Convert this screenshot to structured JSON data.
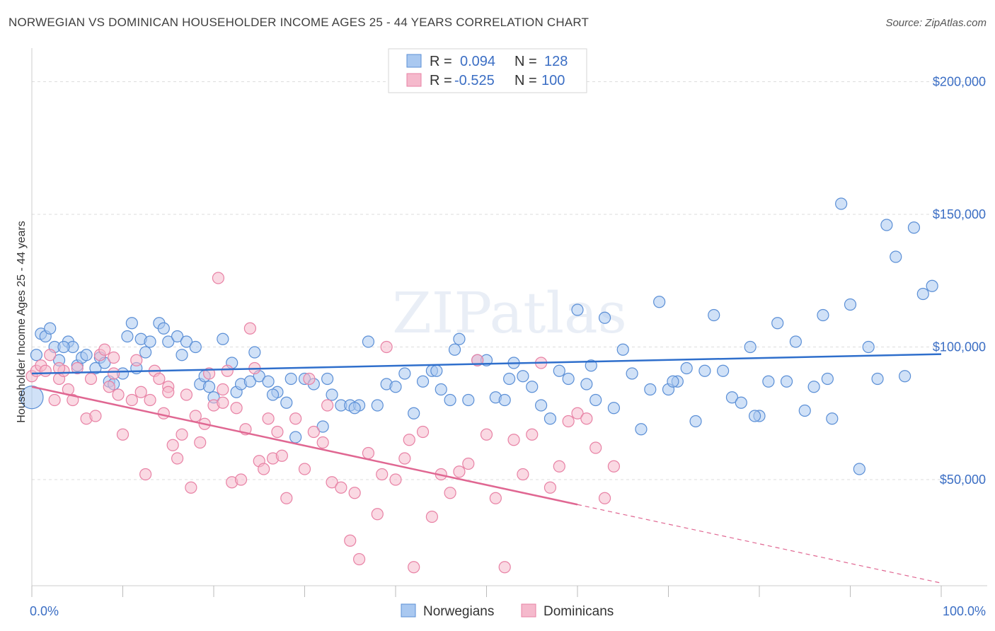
{
  "title": "NORWEGIAN VS DOMINICAN HOUSEHOLDER INCOME AGES 25 - 44 YEARS CORRELATION CHART",
  "source": "Source: ZipAtlas.com",
  "watermark": "ZIPatlas",
  "colors": {
    "blue_fill": "#a9c8f0",
    "blue_stroke": "#5b8fd6",
    "blue_line": "#2f6fcc",
    "pink_fill": "#f5b9cc",
    "pink_stroke": "#e882a5",
    "pink_line": "#e06792",
    "grid": "#dddddd",
    "tick_text": "#3b6ec4"
  },
  "legend": {
    "r_label": "R =",
    "n_label": "N =",
    "rows": [
      {
        "r": "0.094",
        "n": "128",
        "color": "blue"
      },
      {
        "r": "-0.525",
        "n": "100",
        "color": "pink"
      }
    ]
  },
  "chart_data": {
    "type": "scatter",
    "xlabel": "",
    "ylabel": "Householder Income Ages 25 - 44 years",
    "xlim": [
      0,
      100
    ],
    "ylim": [
      10000,
      210000
    ],
    "x_tick_labels": [
      "0.0%",
      "100.0%"
    ],
    "y_ticks": [
      {
        "value": 50000,
        "label": "$50,000"
      },
      {
        "value": 100000,
        "label": "$100,000"
      },
      {
        "value": 150000,
        "label": "$150,000"
      },
      {
        "value": 200000,
        "label": "$200,000"
      }
    ],
    "series": [
      {
        "name": "Norwegians",
        "color": "blue",
        "trend": {
          "x": [
            0,
            100
          ],
          "y": [
            90000,
            97300
          ],
          "dashed_from": null
        },
        "points": [
          [
            0,
            81000
          ],
          [
            0.5,
            97000
          ],
          [
            1,
            105000
          ],
          [
            1.5,
            104000
          ],
          [
            2,
            107000
          ],
          [
            2.5,
            100000
          ],
          [
            3,
            95000
          ],
          [
            4,
            102000
          ],
          [
            4.5,
            100000
          ],
          [
            5,
            93000
          ],
          [
            5.5,
            96000
          ],
          [
            6,
            97000
          ],
          [
            7,
            92000
          ],
          [
            7.5,
            96000
          ],
          [
            8,
            94000
          ],
          [
            8.5,
            87000
          ],
          [
            9,
            86000
          ],
          [
            10,
            90000
          ],
          [
            10.5,
            104000
          ],
          [
            11,
            109000
          ],
          [
            12,
            103000
          ],
          [
            12.5,
            98000
          ],
          [
            13,
            102000
          ],
          [
            14,
            109000
          ],
          [
            14.5,
            107000
          ],
          [
            15,
            102000
          ],
          [
            16,
            104000
          ],
          [
            16.5,
            97000
          ],
          [
            17,
            102000
          ],
          [
            18,
            100000
          ],
          [
            18.5,
            86000
          ],
          [
            19,
            89000
          ],
          [
            20,
            81000
          ],
          [
            21,
            103000
          ],
          [
            22,
            94000
          ],
          [
            22.5,
            83000
          ],
          [
            23,
            86000
          ],
          [
            24,
            87000
          ],
          [
            24.5,
            98000
          ],
          [
            25,
            89000
          ],
          [
            26,
            87000
          ],
          [
            27,
            83000
          ],
          [
            28,
            79000
          ],
          [
            28.5,
            88000
          ],
          [
            29,
            66000
          ],
          [
            30,
            88000
          ],
          [
            31,
            86000
          ],
          [
            32,
            70000
          ],
          [
            32.5,
            88000
          ],
          [
            33,
            82000
          ],
          [
            34,
            78000
          ],
          [
            35,
            78000
          ],
          [
            36,
            78000
          ],
          [
            37,
            102000
          ],
          [
            38,
            78000
          ],
          [
            39,
            86000
          ],
          [
            40,
            85000
          ],
          [
            41,
            90000
          ],
          [
            42,
            75000
          ],
          [
            43,
            87000
          ],
          [
            44,
            91000
          ],
          [
            45,
            84000
          ],
          [
            46,
            80000
          ],
          [
            46.5,
            99000
          ],
          [
            47,
            103000
          ],
          [
            48,
            80000
          ],
          [
            49,
            95000
          ],
          [
            50,
            95000
          ],
          [
            51,
            81000
          ],
          [
            52,
            80000
          ],
          [
            53,
            94000
          ],
          [
            54,
            89000
          ],
          [
            55,
            85000
          ],
          [
            56,
            78000
          ],
          [
            57,
            73000
          ],
          [
            58,
            91000
          ],
          [
            59,
            88000
          ],
          [
            60,
            114000
          ],
          [
            61,
            86000
          ],
          [
            62,
            80000
          ],
          [
            63,
            111000
          ],
          [
            64,
            77000
          ],
          [
            65,
            99000
          ],
          [
            66,
            90000
          ],
          [
            67,
            69000
          ],
          [
            68,
            84000
          ],
          [
            69,
            117000
          ],
          [
            70,
            84000
          ],
          [
            71,
            87000
          ],
          [
            72,
            92000
          ],
          [
            73,
            72000
          ],
          [
            74,
            91000
          ],
          [
            75,
            112000
          ],
          [
            76,
            91000
          ],
          [
            77,
            81000
          ],
          [
            78,
            79000
          ],
          [
            79,
            100000
          ],
          [
            80,
            74000
          ],
          [
            81,
            87000
          ],
          [
            82,
            109000
          ],
          [
            83,
            87000
          ],
          [
            84,
            102000
          ],
          [
            85,
            76000
          ],
          [
            86,
            85000
          ],
          [
            87,
            112000
          ],
          [
            88,
            73000
          ],
          [
            89,
            154000
          ],
          [
            90,
            116000
          ],
          [
            91,
            54000
          ],
          [
            92,
            100000
          ],
          [
            93,
            88000
          ],
          [
            94,
            146000
          ],
          [
            95,
            134000
          ],
          [
            96,
            89000
          ],
          [
            97,
            145000
          ],
          [
            98,
            120000
          ],
          [
            99,
            123000
          ],
          [
            3.5,
            100000
          ],
          [
            11.5,
            92000
          ],
          [
            19.5,
            85000
          ],
          [
            26.5,
            82000
          ],
          [
            35.5,
            77000
          ],
          [
            44.5,
            91000
          ],
          [
            52.5,
            88000
          ],
          [
            61.5,
            93000
          ],
          [
            70.5,
            87000
          ],
          [
            79.5,
            74000
          ],
          [
            87.5,
            88000
          ]
        ]
      },
      {
        "name": "Dominicans",
        "color": "pink",
        "trend": {
          "x": [
            0,
            100
          ],
          "y": [
            85000,
            11000
          ],
          "dashed_from": 60
        },
        "points": [
          [
            0,
            89000
          ],
          [
            0.5,
            91000
          ],
          [
            1,
            93000
          ],
          [
            1.5,
            91000
          ],
          [
            2,
            97000
          ],
          [
            2.5,
            80000
          ],
          [
            3,
            88000
          ],
          [
            3.5,
            91000
          ],
          [
            4,
            84000
          ],
          [
            4.5,
            80000
          ],
          [
            5,
            92000
          ],
          [
            6,
            73000
          ],
          [
            6.5,
            88000
          ],
          [
            7,
            74000
          ],
          [
            7.5,
            97000
          ],
          [
            8,
            99000
          ],
          [
            8.5,
            85000
          ],
          [
            9,
            96000
          ],
          [
            9.5,
            82000
          ],
          [
            10,
            67000
          ],
          [
            11,
            80000
          ],
          [
            11.5,
            95000
          ],
          [
            12,
            83000
          ],
          [
            12.5,
            52000
          ],
          [
            13,
            80000
          ],
          [
            13.5,
            91000
          ],
          [
            14,
            88000
          ],
          [
            14.5,
            75000
          ],
          [
            15,
            85000
          ],
          [
            15.5,
            63000
          ],
          [
            16,
            58000
          ],
          [
            16.5,
            67000
          ],
          [
            17,
            82000
          ],
          [
            17.5,
            47000
          ],
          [
            18,
            74000
          ],
          [
            18.5,
            64000
          ],
          [
            19,
            71000
          ],
          [
            19.5,
            90000
          ],
          [
            20,
            78000
          ],
          [
            20.5,
            126000
          ],
          [
            21,
            79000
          ],
          [
            21.5,
            91000
          ],
          [
            22,
            49000
          ],
          [
            22.5,
            77000
          ],
          [
            23,
            50000
          ],
          [
            23.5,
            69000
          ],
          [
            24,
            107000
          ],
          [
            24.5,
            92000
          ],
          [
            25,
            57000
          ],
          [
            25.5,
            54000
          ],
          [
            26,
            73000
          ],
          [
            26.5,
            58000
          ],
          [
            27,
            68000
          ],
          [
            27.5,
            59000
          ],
          [
            28,
            43000
          ],
          [
            29,
            73000
          ],
          [
            30,
            54000
          ],
          [
            30.5,
            88000
          ],
          [
            31,
            68000
          ],
          [
            32,
            64000
          ],
          [
            32.5,
            78000
          ],
          [
            33,
            49000
          ],
          [
            34,
            47000
          ],
          [
            35,
            27000
          ],
          [
            35.5,
            45000
          ],
          [
            36,
            20000
          ],
          [
            37,
            60000
          ],
          [
            38,
            37000
          ],
          [
            38.5,
            52000
          ],
          [
            39,
            100000
          ],
          [
            40,
            50000
          ],
          [
            41,
            58000
          ],
          [
            41.5,
            65000
          ],
          [
            42,
            17000
          ],
          [
            43,
            68000
          ],
          [
            44,
            36000
          ],
          [
            45,
            52000
          ],
          [
            46,
            45000
          ],
          [
            47,
            53000
          ],
          [
            48,
            56000
          ],
          [
            49,
            95000
          ],
          [
            50,
            67000
          ],
          [
            51,
            43000
          ],
          [
            52,
            17000
          ],
          [
            53,
            65000
          ],
          [
            54,
            52000
          ],
          [
            55,
            67000
          ],
          [
            56,
            94000
          ],
          [
            57,
            47000
          ],
          [
            58,
            55000
          ],
          [
            59,
            72000
          ],
          [
            60,
            75000
          ],
          [
            61,
            73000
          ],
          [
            62,
            62000
          ],
          [
            63,
            43000
          ],
          [
            64,
            55000
          ],
          [
            3,
            92000
          ],
          [
            9,
            90000
          ],
          [
            15,
            83000
          ],
          [
            21,
            84000
          ]
        ]
      }
    ],
    "legend_placement": "top-center",
    "bottom_legend": [
      "Norwegians",
      "Dominicans"
    ],
    "grid": true
  }
}
